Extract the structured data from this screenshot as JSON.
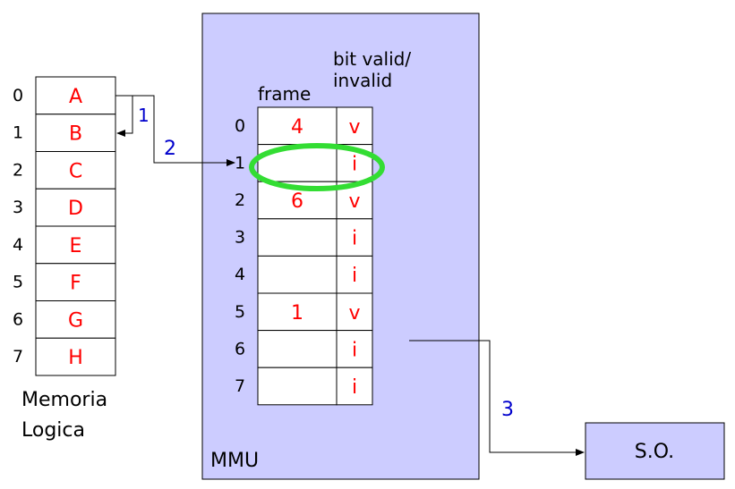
{
  "colors": {
    "mmu_fill": "#ccccff",
    "so_fill": "#ccccff",
    "red_text": "#ff0000",
    "blue_text": "#0000cc",
    "highlight": "#33dd33",
    "line": "#000000"
  },
  "logical_memory": {
    "label_line1": "Memoria",
    "label_line2": "Logica",
    "rows": [
      {
        "index": "0",
        "value": "A"
      },
      {
        "index": "1",
        "value": "B"
      },
      {
        "index": "2",
        "value": "C"
      },
      {
        "index": "3",
        "value": "D"
      },
      {
        "index": "4",
        "value": "E"
      },
      {
        "index": "5",
        "value": "F"
      },
      {
        "index": "6",
        "value": "G"
      },
      {
        "index": "7",
        "value": "H"
      }
    ]
  },
  "mmu": {
    "label": "MMU",
    "frame_header": "frame",
    "bit_header_line1": "bit valid/",
    "bit_header_line2": "invalid",
    "highlighted_row": "1",
    "rows": [
      {
        "index": "0",
        "frame": "4",
        "bit": "v"
      },
      {
        "index": "1",
        "frame": "",
        "bit": "i"
      },
      {
        "index": "2",
        "frame": "6",
        "bit": "v"
      },
      {
        "index": "3",
        "frame": "",
        "bit": "i"
      },
      {
        "index": "4",
        "frame": "",
        "bit": "i"
      },
      {
        "index": "5",
        "frame": "1",
        "bit": "v"
      },
      {
        "index": "6",
        "frame": "",
        "bit": "i"
      },
      {
        "index": "7",
        "frame": "",
        "bit": "i"
      }
    ]
  },
  "steps": {
    "step1": "1",
    "step2": "2",
    "step3": "3"
  },
  "os": {
    "label": "S.O."
  }
}
